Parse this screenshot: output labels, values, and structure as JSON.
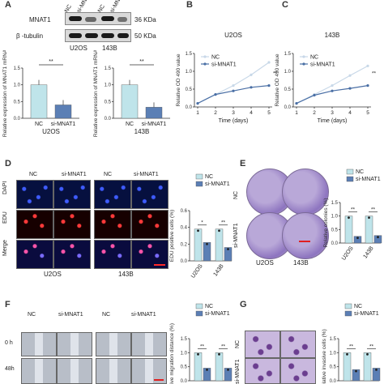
{
  "panels": {
    "A": "A",
    "B": "B",
    "C": "C",
    "D": "D",
    "E": "E",
    "F": "F",
    "G": "G"
  },
  "western": {
    "lanes": [
      "NC",
      "si-MNAT1",
      "NC",
      "si-MNAT1"
    ],
    "rows": [
      {
        "label": "MNAT1",
        "kda": "36 KDa"
      },
      {
        "label": "β -tubulin",
        "kda": "50 KDa"
      }
    ],
    "cells": [
      "U2OS",
      "143B"
    ]
  },
  "colors": {
    "nc": "#bfe4ea",
    "si": "#5b7fb5",
    "nc_line": "#c8d8e8",
    "si_line": "#4a6fa5"
  },
  "chart_data": [
    {
      "panel": "A-left",
      "type": "bar",
      "categories": [
        "NC",
        "si-MNAT1"
      ],
      "values": [
        1.0,
        0.4
      ],
      "ylim": [
        0,
        1.5
      ],
      "yticks": [
        "0.0",
        "0.5",
        "1.0",
        "1.5"
      ],
      "ylabel": "Relative expression of MNAT1 mRNA",
      "xlabel": "U2OS",
      "sig": "**"
    },
    {
      "panel": "A-right",
      "type": "bar",
      "categories": [
        "NC",
        "si-MNAT1"
      ],
      "values": [
        1.0,
        0.33
      ],
      "ylim": [
        0,
        1.5
      ],
      "yticks": [
        "0.0",
        "0.5",
        "1.0",
        "1.5"
      ],
      "ylabel": "Relative expression of MNAT1 mRNA",
      "xlabel": "143B",
      "sig": "**"
    },
    {
      "panel": "B",
      "type": "line",
      "title": "U2OS",
      "x": [
        1,
        2,
        3,
        4,
        5
      ],
      "series": [
        {
          "name": "NC",
          "values": [
            0.1,
            0.35,
            0.6,
            0.9,
            1.25
          ]
        },
        {
          "name": "si-MNAT1",
          "values": [
            0.1,
            0.35,
            0.45,
            0.55,
            0.6
          ]
        }
      ],
      "ylim": [
        0,
        1.5
      ],
      "yticks": [
        "0.0",
        "0.5",
        "1.0",
        "1.5"
      ],
      "xlabel": "Time (days)",
      "ylabel": "Relative OD 490 value",
      "sig": "**"
    },
    {
      "panel": "C",
      "type": "line",
      "title": "143B",
      "x": [
        1,
        2,
        3,
        4,
        5
      ],
      "series": [
        {
          "name": "NC",
          "values": [
            0.1,
            0.35,
            0.6,
            0.88,
            1.15
          ]
        },
        {
          "name": "si-MNAT1",
          "values": [
            0.1,
            0.33,
            0.45,
            0.52,
            0.6
          ]
        }
      ],
      "ylim": [
        0,
        1.5
      ],
      "yticks": [
        "0.0",
        "0.5",
        "1.0",
        "1.5"
      ],
      "xlabel": "Time (days)",
      "ylabel": "Relative OD 490 value",
      "sig": "**"
    },
    {
      "panel": "D-bar",
      "type": "bar",
      "categories": [
        "U2OS",
        "143B"
      ],
      "series": [
        {
          "name": "NC",
          "values": [
            0.38,
            0.38
          ]
        },
        {
          "name": "si-MNAT1",
          "values": [
            0.22,
            0.16
          ]
        }
      ],
      "ylim": [
        0,
        0.6
      ],
      "yticks": [
        "0.0",
        "0.2",
        "0.4",
        "0.6"
      ],
      "ylabel": "EDU positive cells (%)",
      "sig": [
        "*",
        "**"
      ]
    },
    {
      "panel": "E-bar",
      "type": "bar",
      "categories": [
        "U2OS",
        "143B"
      ],
      "series": [
        {
          "name": "NC",
          "values": [
            1.0,
            1.0
          ]
        },
        {
          "name": "si-MNAT1",
          "values": [
            0.25,
            0.28
          ]
        }
      ],
      "ylim": [
        0,
        1.5
      ],
      "yticks": [
        "0.0",
        "0.5",
        "1.0",
        "1.5"
      ],
      "ylabel": "Relative colonies (%)",
      "sig": [
        "**",
        "**"
      ]
    },
    {
      "panel": "F-bar",
      "type": "bar",
      "categories": [
        "U2OS",
        "143B"
      ],
      "series": [
        {
          "name": "NC",
          "values": [
            1.0,
            1.0
          ]
        },
        {
          "name": "si-MNAT1",
          "values": [
            0.45,
            0.45
          ]
        }
      ],
      "ylim": [
        0,
        1.5
      ],
      "yticks": [
        "0.0",
        "0.5",
        "1.0",
        "1.5"
      ],
      "ylabel": "Relative migration distance (%)",
      "sig": [
        "**",
        "**"
      ]
    },
    {
      "panel": "G-bar",
      "type": "bar",
      "categories": [
        "U2OS",
        "143B"
      ],
      "series": [
        {
          "name": "NC",
          "values": [
            1.0,
            1.0
          ]
        },
        {
          "name": "si-MNAT1",
          "values": [
            0.4,
            0.45
          ]
        }
      ],
      "ylim": [
        0,
        1.5
      ],
      "yticks": [
        "0.0",
        "0.5",
        "1.0",
        "1.5"
      ],
      "ylabel": "Relative invasive cells (%)",
      "sig": [
        "**",
        "**"
      ]
    }
  ],
  "legend": [
    "NC",
    "si-MNAT1"
  ],
  "images": {
    "d_cols": [
      "NC",
      "si-MNAT1",
      "NC",
      "si-MNAT1"
    ],
    "d_rows": [
      "DAPI",
      "EDU",
      "Merge"
    ],
    "d_cells": [
      "U2OS",
      "143B"
    ],
    "e_rows": [
      "NC",
      "si-MNAT1"
    ],
    "e_cells": [
      "U2OS",
      "143B"
    ],
    "f_cols": [
      "NC",
      "si-MNAT1",
      "NC",
      "si-MNAT1"
    ],
    "f_rows": [
      "0 h",
      "48h"
    ],
    "g_rows": [
      "NC",
      "si-MNAT1"
    ]
  }
}
